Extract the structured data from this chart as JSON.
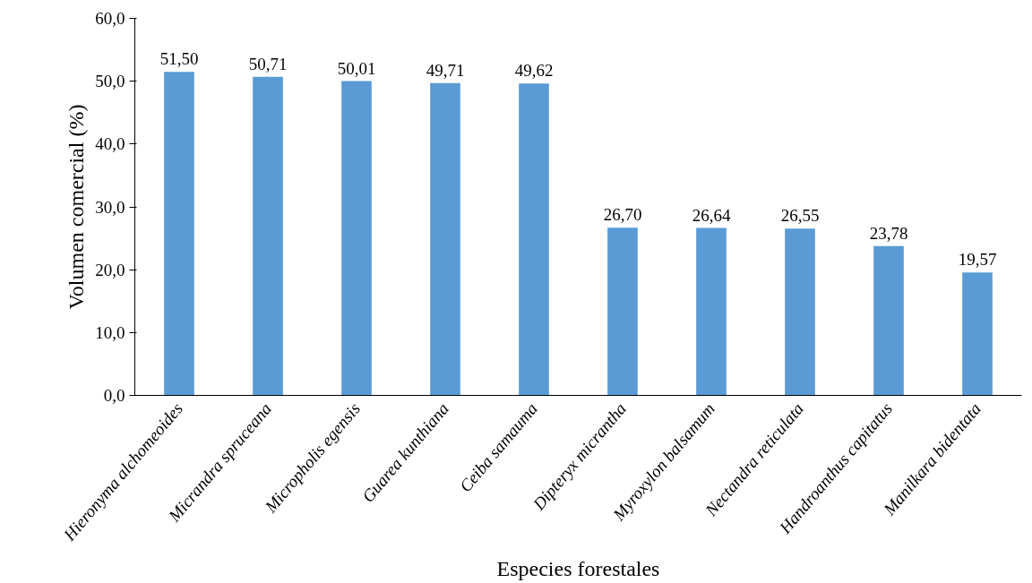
{
  "chart_data": {
    "type": "bar",
    "xlabel": "Especies forestales",
    "ylabel": "Volumen comercial (%)",
    "categories": [
      "Hieronyma alchomeoides",
      "Micrandra spruceana",
      "Micropholis egensis",
      "Guarea kunthiana",
      "Ceiba samauma",
      "Dipteryx micrantha",
      "Myroxylon balsamum",
      "Nectandra reticulata",
      "Handroanthus capitatus",
      "Manilkara bidentata"
    ],
    "values": [
      51.5,
      50.71,
      50.01,
      49.71,
      49.62,
      26.7,
      26.64,
      26.55,
      23.78,
      19.57
    ],
    "value_labels": [
      "51,50",
      "50,71",
      "50,01",
      "49,71",
      "49,62",
      "26,70",
      "26,64",
      "26,55",
      "23,78",
      "19,57"
    ],
    "color": "#5b9bd5",
    "ylim": [
      0,
      60
    ],
    "yticks": [
      {
        "value": 0,
        "label": "0,0"
      },
      {
        "value": 10,
        "label": "10,0"
      },
      {
        "value": 20,
        "label": "20,0"
      },
      {
        "value": 30,
        "label": "30,0"
      },
      {
        "value": 40,
        "label": "40,0"
      },
      {
        "value": 50,
        "label": "50,0"
      },
      {
        "value": 60,
        "label": "60,0"
      }
    ],
    "grid": false
  }
}
